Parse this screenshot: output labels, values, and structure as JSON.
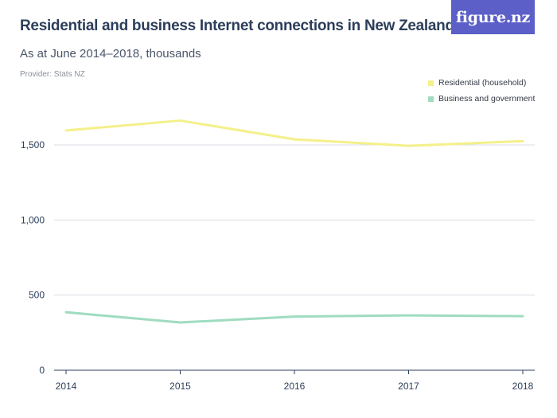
{
  "header": {
    "title": "Residential and business Internet connections in New Zealand",
    "subtitle": "As at June 2014–2018, thousands",
    "provider": "Provider: Stats NZ",
    "logo_text": "figure.nz",
    "logo_color": "#5b5fc7"
  },
  "chart_data": {
    "type": "line",
    "title": "Residential and business Internet connections in New Zealand",
    "subtitle": "As at June 2014–2018, thousands",
    "xlabel": "",
    "ylabel": "",
    "x": [
      "2014",
      "2015",
      "2016",
      "2017",
      "2018"
    ],
    "ylim": [
      0,
      1800
    ],
    "yticks": [
      0,
      500,
      1000,
      1500
    ],
    "ytick_labels": [
      "0",
      "500",
      "1,000",
      "1,500"
    ],
    "grid": true,
    "legend_position": "top-right",
    "series": [
      {
        "name": "Residential (household)",
        "color": "#f4f08a",
        "values": [
          1596,
          1662,
          1537,
          1494,
          1525
        ]
      },
      {
        "name": "Business and government",
        "color": "#9fdcc0",
        "values": [
          386,
          318,
          357,
          365,
          360
        ]
      }
    ]
  }
}
